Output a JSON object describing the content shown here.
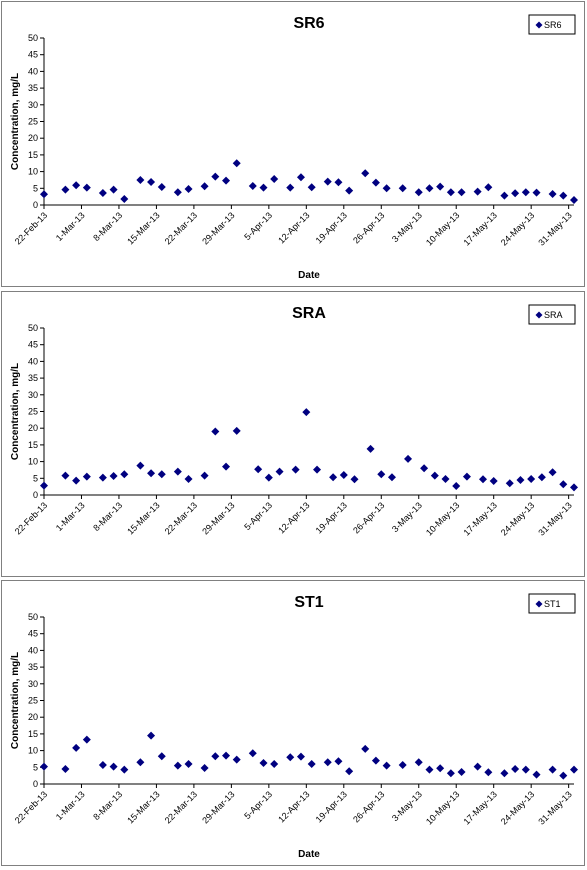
{
  "chart_data": [
    {
      "type": "scatter",
      "title": "SR6",
      "xlabel": "Date",
      "ylabel": "Concentration, mg/L",
      "ylim": [
        0,
        50
      ],
      "yticks": [
        0,
        5,
        10,
        15,
        20,
        25,
        30,
        35,
        40,
        45,
        50
      ],
      "xlim": [
        "2013-02-22",
        "2013-06-01"
      ],
      "xtick_labels": [
        "22-Feb-13",
        "1-Mar-13",
        "8-Mar-13",
        "15-Mar-13",
        "22-Mar-13",
        "29-Mar-13",
        "5-Apr-13",
        "12-Apr-13",
        "19-Apr-13",
        "26-Apr-13",
        "3-May-13",
        "10-May-13",
        "17-May-13",
        "24-May-13",
        "31-May-13"
      ],
      "grid": false,
      "legend": "top-right",
      "marker_color": "#000080",
      "series": [
        {
          "name": "SR6",
          "points": [
            [
              "2013-02-22",
              3.2
            ],
            [
              "2013-02-26",
              4.6
            ],
            [
              "2013-02-28",
              5.9
            ],
            [
              "2013-03-02",
              5.2
            ],
            [
              "2013-03-05",
              3.6
            ],
            [
              "2013-03-07",
              4.6
            ],
            [
              "2013-03-09",
              1.8
            ],
            [
              "2013-03-12",
              7.5
            ],
            [
              "2013-03-14",
              6.9
            ],
            [
              "2013-03-16",
              5.4
            ],
            [
              "2013-03-19",
              3.8
            ],
            [
              "2013-03-21",
              4.8
            ],
            [
              "2013-03-24",
              5.6
            ],
            [
              "2013-03-26",
              8.5
            ],
            [
              "2013-03-28",
              7.3
            ],
            [
              "2013-03-30",
              12.5
            ],
            [
              "2013-04-02",
              5.7
            ],
            [
              "2013-04-04",
              5.2
            ],
            [
              "2013-04-06",
              7.8
            ],
            [
              "2013-04-09",
              5.2
            ],
            [
              "2013-04-11",
              8.3
            ],
            [
              "2013-04-13",
              5.3
            ],
            [
              "2013-04-16",
              7.0
            ],
            [
              "2013-04-18",
              6.8
            ],
            [
              "2013-04-20",
              4.3
            ],
            [
              "2013-04-23",
              9.5
            ],
            [
              "2013-04-25",
              6.7
            ],
            [
              "2013-04-27",
              5.0
            ],
            [
              "2013-04-30",
              5.0
            ],
            [
              "2013-05-03",
              3.8
            ],
            [
              "2013-05-05",
              5.0
            ],
            [
              "2013-05-07",
              5.5
            ],
            [
              "2013-05-09",
              3.8
            ],
            [
              "2013-05-11",
              3.8
            ],
            [
              "2013-05-14",
              4.0
            ],
            [
              "2013-05-16",
              5.3
            ],
            [
              "2013-05-19",
              2.8
            ],
            [
              "2013-05-21",
              3.5
            ],
            [
              "2013-05-23",
              3.8
            ],
            [
              "2013-05-25",
              3.7
            ],
            [
              "2013-05-28",
              3.3
            ],
            [
              "2013-05-30",
              2.8
            ],
            [
              "2013-06-01",
              1.5
            ]
          ]
        }
      ]
    },
    {
      "type": "scatter",
      "title": "SRA",
      "xlabel": "",
      "ylabel": "Concentration, mg/L",
      "ylim": [
        0,
        50
      ],
      "yticks": [
        0,
        5,
        10,
        15,
        20,
        25,
        30,
        35,
        40,
        45,
        50
      ],
      "xlim": [
        "2013-02-22",
        "2013-06-01"
      ],
      "xtick_labels": [
        "22-Feb-13",
        "1-Mar-13",
        "8-Mar-13",
        "15-Mar-13",
        "22-Mar-13",
        "29-Mar-13",
        "5-Apr-13",
        "12-Apr-13",
        "19-Apr-13",
        "26-Apr-13",
        "3-May-13",
        "10-May-13",
        "17-May-13",
        "24-May-13",
        "31-May-13"
      ],
      "grid": false,
      "legend": "top-right",
      "marker_color": "#000080",
      "series": [
        {
          "name": "SRA",
          "points": [
            [
              "2013-02-22",
              2.8
            ],
            [
              "2013-02-26",
              5.8
            ],
            [
              "2013-02-28",
              4.3
            ],
            [
              "2013-03-02",
              5.5
            ],
            [
              "2013-03-05",
              5.2
            ],
            [
              "2013-03-07",
              5.7
            ],
            [
              "2013-03-09",
              6.2
            ],
            [
              "2013-03-12",
              8.8
            ],
            [
              "2013-03-14",
              6.5
            ],
            [
              "2013-03-16",
              6.2
            ],
            [
              "2013-03-19",
              7.0
            ],
            [
              "2013-03-21",
              4.8
            ],
            [
              "2013-03-24",
              5.8
            ],
            [
              "2013-03-26",
              19.0
            ],
            [
              "2013-03-28",
              8.5
            ],
            [
              "2013-03-30",
              19.2
            ],
            [
              "2013-04-03",
              7.7
            ],
            [
              "2013-04-05",
              5.2
            ],
            [
              "2013-04-07",
              7.0
            ],
            [
              "2013-04-10",
              7.6
            ],
            [
              "2013-04-12",
              24.8
            ],
            [
              "2013-04-14",
              7.6
            ],
            [
              "2013-04-17",
              5.3
            ],
            [
              "2013-04-19",
              6.0
            ],
            [
              "2013-04-21",
              4.7
            ],
            [
              "2013-04-24",
              13.8
            ],
            [
              "2013-04-26",
              6.2
            ],
            [
              "2013-04-28",
              5.3
            ],
            [
              "2013-05-01",
              10.8
            ],
            [
              "2013-05-04",
              8.0
            ],
            [
              "2013-05-06",
              5.8
            ],
            [
              "2013-05-08",
              4.8
            ],
            [
              "2013-05-10",
              2.7
            ],
            [
              "2013-05-12",
              5.5
            ],
            [
              "2013-05-15",
              4.7
            ],
            [
              "2013-05-17",
              4.2
            ],
            [
              "2013-05-20",
              3.5
            ],
            [
              "2013-05-22",
              4.5
            ],
            [
              "2013-05-24",
              4.8
            ],
            [
              "2013-05-26",
              5.3
            ],
            [
              "2013-05-28",
              6.8
            ],
            [
              "2013-05-30",
              3.2
            ],
            [
              "2013-06-01",
              2.3
            ]
          ]
        }
      ]
    },
    {
      "type": "scatter",
      "title": "ST1",
      "xlabel": "Date",
      "ylabel": "Concentration, mg/L",
      "ylim": [
        0,
        50
      ],
      "yticks": [
        0,
        5,
        10,
        15,
        20,
        25,
        30,
        35,
        40,
        45,
        50
      ],
      "xlim": [
        "2013-02-22",
        "2013-06-01"
      ],
      "xtick_labels": [
        "22-Feb-13",
        "1-Mar-13",
        "8-Mar-13",
        "15-Mar-13",
        "22-Mar-13",
        "29-Mar-13",
        "5-Apr-13",
        "12-Apr-13",
        "19-Apr-13",
        "26-Apr-13",
        "3-May-13",
        "10-May-13",
        "17-May-13",
        "24-May-13",
        "31-May-13"
      ],
      "grid": false,
      "legend": "top-right",
      "marker_color": "#000080",
      "series": [
        {
          "name": "ST1",
          "points": [
            [
              "2013-02-22",
              5.2
            ],
            [
              "2013-02-26",
              4.5
            ],
            [
              "2013-02-28",
              10.8
            ],
            [
              "2013-03-02",
              13.3
            ],
            [
              "2013-03-05",
              5.7
            ],
            [
              "2013-03-07",
              5.2
            ],
            [
              "2013-03-09",
              4.3
            ],
            [
              "2013-03-12",
              6.5
            ],
            [
              "2013-03-14",
              14.5
            ],
            [
              "2013-03-16",
              8.3
            ],
            [
              "2013-03-19",
              5.5
            ],
            [
              "2013-03-21",
              6.0
            ],
            [
              "2013-03-24",
              4.8
            ],
            [
              "2013-03-26",
              8.3
            ],
            [
              "2013-03-28",
              8.5
            ],
            [
              "2013-03-30",
              7.3
            ],
            [
              "2013-04-02",
              9.2
            ],
            [
              "2013-04-04",
              6.3
            ],
            [
              "2013-04-06",
              6.0
            ],
            [
              "2013-04-09",
              8.0
            ],
            [
              "2013-04-11",
              8.2
            ],
            [
              "2013-04-13",
              6.0
            ],
            [
              "2013-04-16",
              6.5
            ],
            [
              "2013-04-18",
              6.8
            ],
            [
              "2013-04-20",
              3.8
            ],
            [
              "2013-04-23",
              10.5
            ],
            [
              "2013-04-25",
              7.0
            ],
            [
              "2013-04-27",
              5.5
            ],
            [
              "2013-04-30",
              5.7
            ],
            [
              "2013-05-03",
              6.5
            ],
            [
              "2013-05-05",
              4.3
            ],
            [
              "2013-05-07",
              4.7
            ],
            [
              "2013-05-09",
              3.2
            ],
            [
              "2013-05-11",
              3.6
            ],
            [
              "2013-05-14",
              5.2
            ],
            [
              "2013-05-16",
              3.5
            ],
            [
              "2013-05-19",
              3.2
            ],
            [
              "2013-05-21",
              4.5
            ],
            [
              "2013-05-23",
              4.3
            ],
            [
              "2013-05-25",
              2.8
            ],
            [
              "2013-05-28",
              4.3
            ],
            [
              "2013-05-30",
              2.5
            ],
            [
              "2013-06-01",
              4.3
            ]
          ]
        }
      ]
    }
  ]
}
